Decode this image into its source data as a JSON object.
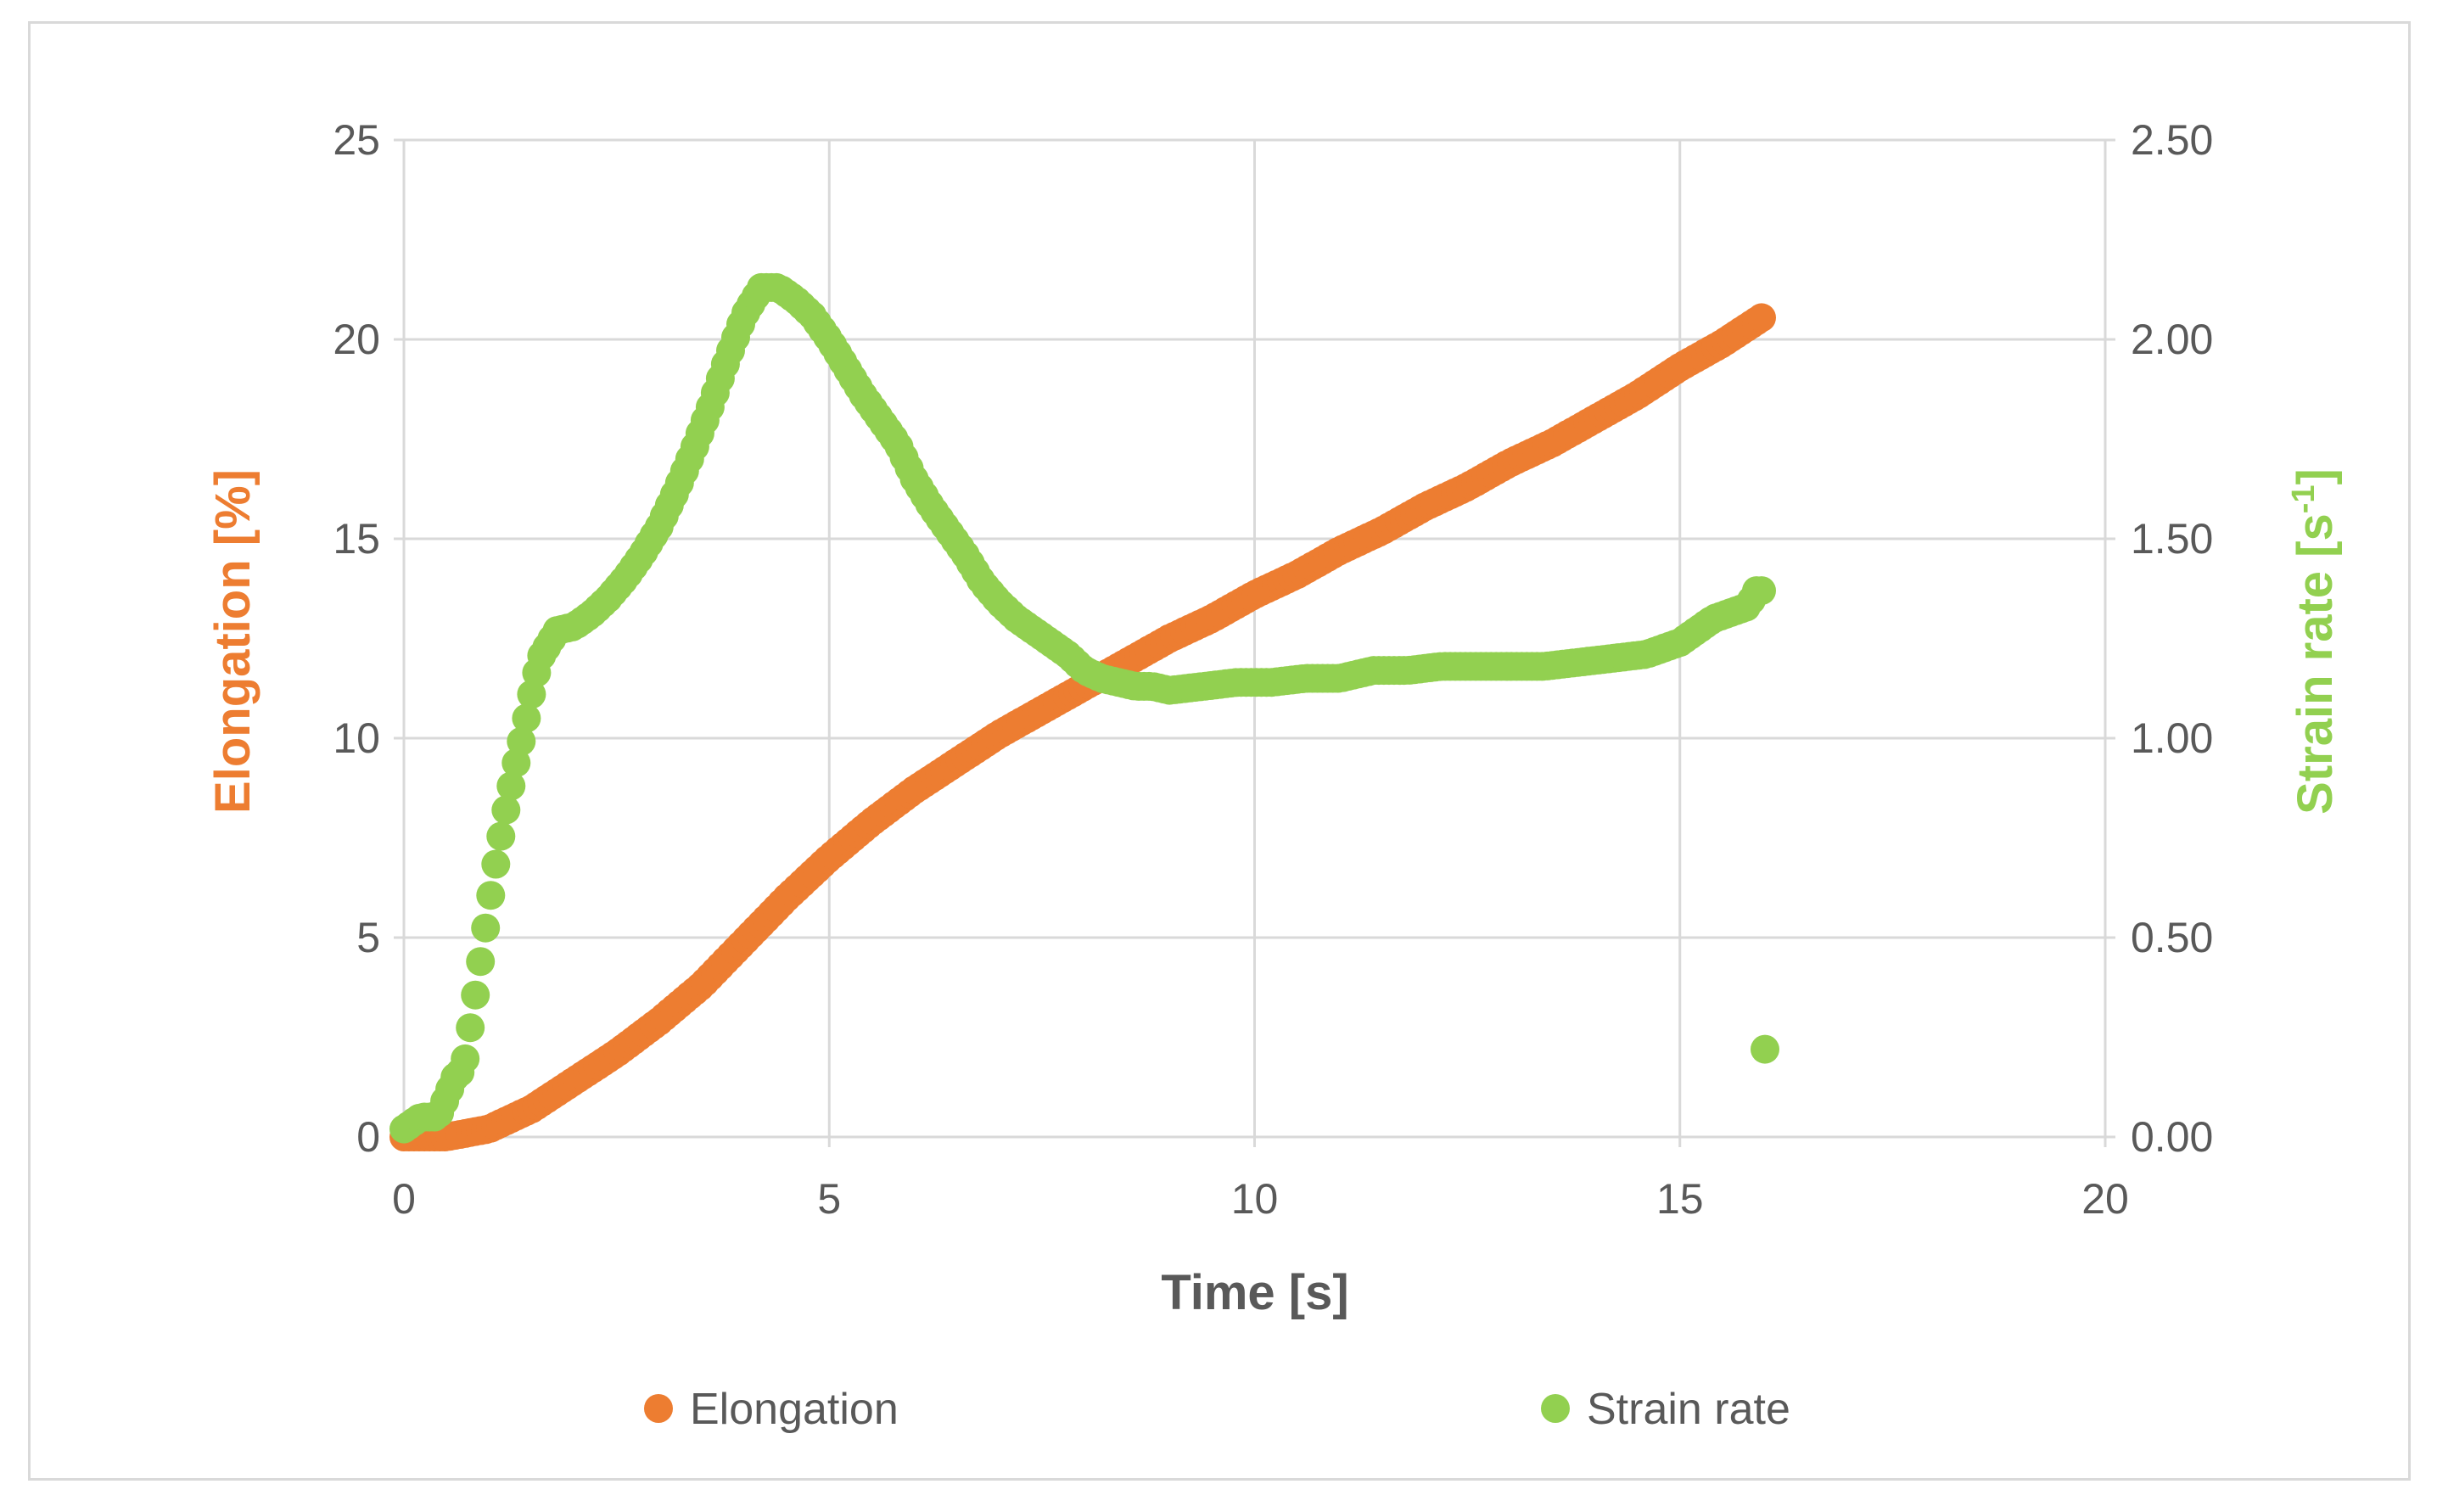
{
  "chart_data": {
    "type": "scatter",
    "title": "",
    "xlabel": "Time [s]",
    "ylabel_left": "Elongation [%]",
    "ylabel_right_main": "Strain rate [s",
    "ylabel_right_sup": "-1",
    "ylabel_right_close": "]",
    "xlim": [
      0,
      20
    ],
    "ylim_left": [
      0,
      25
    ],
    "ylim_right": [
      0,
      2.5
    ],
    "x_ticks": [
      "0",
      "5",
      "10",
      "15",
      "20"
    ],
    "y_left_ticks": [
      "0",
      "5",
      "10",
      "15",
      "20",
      "25"
    ],
    "y_right_ticks": [
      "0.00",
      "0.50",
      "1.00",
      "1.50",
      "2.00",
      "2.50"
    ],
    "grid": true,
    "legend_position": "bottom",
    "colors": {
      "elongation": "#ED7D31",
      "strain_rate": "#92D050",
      "grid": "#d9d9d9",
      "tick_text": "#595959"
    },
    "series": [
      {
        "name": "Elongation",
        "axis": "left",
        "color": "#ED7D31",
        "x": [
          0,
          0.5,
          1.0,
          1.5,
          2.0,
          2.5,
          3.0,
          3.5,
          4.0,
          4.5,
          5.0,
          5.5,
          6.0,
          6.5,
          7.0,
          7.5,
          8.0,
          8.5,
          9.0,
          9.5,
          10.0,
          10.5,
          11.0,
          11.5,
          12.0,
          12.5,
          13.0,
          13.5,
          14.0,
          14.5,
          15.0,
          15.5,
          16.0
        ],
        "y": [
          0.0,
          0.0,
          0.2,
          0.7,
          1.4,
          2.1,
          2.9,
          3.8,
          4.9,
          6.0,
          7.0,
          7.9,
          8.7,
          9.4,
          10.1,
          10.7,
          11.3,
          11.9,
          12.5,
          13.0,
          13.6,
          14.1,
          14.7,
          15.2,
          15.8,
          16.3,
          16.9,
          17.4,
          18.0,
          18.6,
          19.3,
          19.9,
          20.6
        ]
      },
      {
        "name": "Strain rate",
        "axis": "right",
        "color": "#92D050",
        "x": [
          0,
          0.2,
          0.4,
          0.6,
          0.7,
          0.8,
          0.9,
          1.0,
          1.1,
          1.2,
          1.3,
          1.4,
          1.5,
          1.6,
          1.8,
          2.0,
          2.2,
          2.4,
          2.6,
          2.8,
          3.0,
          3.2,
          3.4,
          3.6,
          3.8,
          4.0,
          4.2,
          4.4,
          4.6,
          4.8,
          5.0,
          5.2,
          5.4,
          5.6,
          5.8,
          6.0,
          6.2,
          6.4,
          6.6,
          6.8,
          7.0,
          7.2,
          7.4,
          7.6,
          7.8,
          8.0,
          8.2,
          8.4,
          8.6,
          8.8,
          9.0,
          9.4,
          9.8,
          10.2,
          10.6,
          11.0,
          11.4,
          11.8,
          12.2,
          12.6,
          13.0,
          13.4,
          13.8,
          14.2,
          14.6,
          15.0,
          15.4,
          15.8,
          15.9,
          16.0,
          16.0
        ],
        "y": [
          0.02,
          0.05,
          0.05,
          0.15,
          0.17,
          0.3,
          0.44,
          0.58,
          0.71,
          0.82,
          0.92,
          1.01,
          1.11,
          1.2,
          1.27,
          1.28,
          1.31,
          1.35,
          1.4,
          1.46,
          1.53,
          1.62,
          1.72,
          1.83,
          1.95,
          2.06,
          2.13,
          2.13,
          2.1,
          2.06,
          2.0,
          1.93,
          1.86,
          1.8,
          1.74,
          1.65,
          1.58,
          1.52,
          1.46,
          1.39,
          1.34,
          1.3,
          1.27,
          1.24,
          1.21,
          1.17,
          1.15,
          1.14,
          1.13,
          1.13,
          1.12,
          1.13,
          1.14,
          1.14,
          1.15,
          1.15,
          1.17,
          1.17,
          1.18,
          1.18,
          1.18,
          1.18,
          1.19,
          1.2,
          1.21,
          1.24,
          1.3,
          1.33,
          1.37,
          1.37,
          0.22
        ]
      }
    ]
  }
}
